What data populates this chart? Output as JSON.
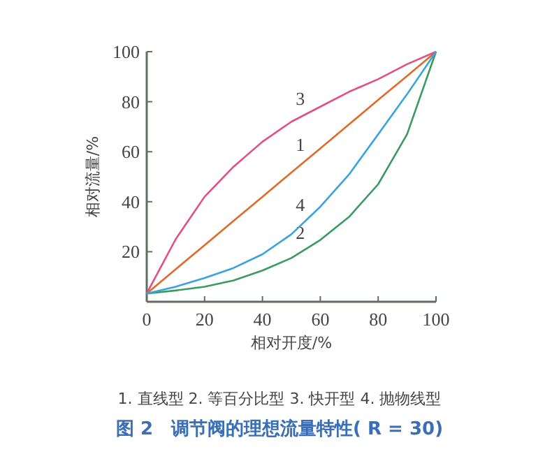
{
  "chart_data": {
    "type": "line",
    "xlabel": "相对开度/%",
    "ylabel": "相对流量/%",
    "x": [
      0,
      10,
      20,
      30,
      40,
      50,
      60,
      70,
      80,
      90,
      100
    ],
    "series": [
      {
        "name": "1",
        "color": "#e06a2a",
        "values": [
          3.3,
          13,
          22.6,
          32.3,
          42,
          51.7,
          61.3,
          71,
          80.7,
          90.3,
          100
        ]
      },
      {
        "name": "2",
        "color": "#3a9a62",
        "values": [
          3.3,
          4.5,
          6,
          8.5,
          12.5,
          17.5,
          24.7,
          34,
          47,
          67,
          100
        ]
      },
      {
        "name": "3",
        "color": "#e2507e",
        "values": [
          3.3,
          25,
          42,
          54,
          64,
          72,
          78,
          84,
          89,
          95,
          100
        ]
      },
      {
        "name": "4",
        "color": "#3aa2dc",
        "values": [
          3.3,
          6,
          9.5,
          13.5,
          19,
          27,
          38,
          51,
          67,
          83,
          100
        ]
      }
    ],
    "xlim": [
      0,
      100
    ],
    "ylim": [
      0,
      100
    ],
    "xticks": [
      0,
      20,
      40,
      60,
      80,
      100
    ],
    "yticks": [
      20,
      40,
      60,
      80,
      100
    ],
    "grid": false,
    "annotations": [
      "1. 直线型 2. 等百分比型 3. 快开型 4. 抛物线型"
    ],
    "title": "图 2　调节阀的理想流量特性( R = 30)"
  }
}
